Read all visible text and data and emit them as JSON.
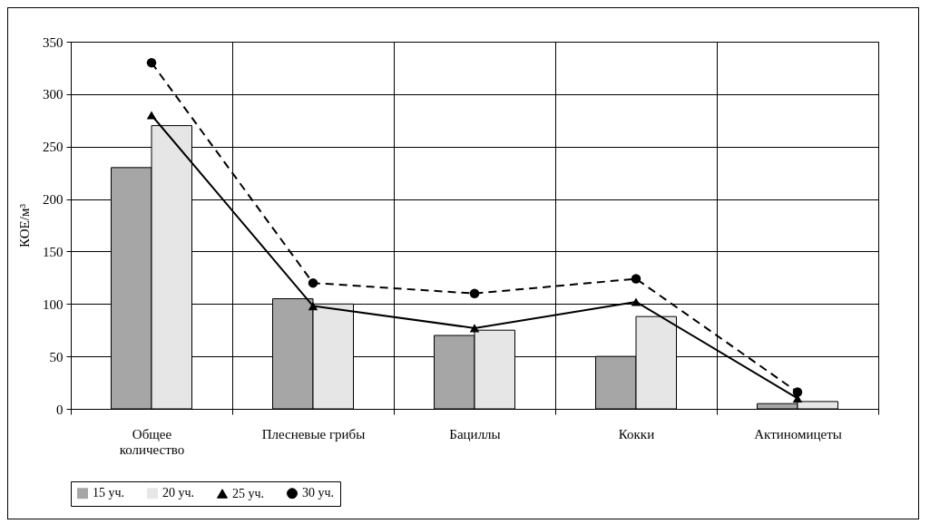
{
  "chart_data": {
    "type": "bar",
    "ylabel": "КОЕ/м³",
    "categories": [
      "Общее количество",
      "Плесневые грибы",
      "Бациллы",
      "Кокки",
      "Актиномицеты"
    ],
    "series": [
      {
        "name": "15 уч.",
        "color": "#a6a6a6",
        "values": [
          230,
          105,
          70,
          50,
          5
        ]
      },
      {
        "name": "20 уч.",
        "color": "#e6e6e6",
        "values": [
          270,
          100,
          75,
          88,
          7
        ]
      },
      {
        "name": "25 уч.",
        "type": "line",
        "color": "#000000",
        "marker": "triangle",
        "line_style": "solid",
        "values": [
          280,
          98,
          77,
          102,
          10
        ]
      },
      {
        "name": "30 уч.",
        "type": "line",
        "color": "#000000",
        "marker": "circle",
        "line_style": "dashed",
        "values": [
          330,
          120,
          110,
          124,
          16
        ]
      }
    ],
    "ylim": [
      0,
      350
    ],
    "yticks": [
      0,
      50,
      100,
      150,
      200,
      250,
      300,
      350
    ],
    "grid": true,
    "legend": "bottom"
  }
}
